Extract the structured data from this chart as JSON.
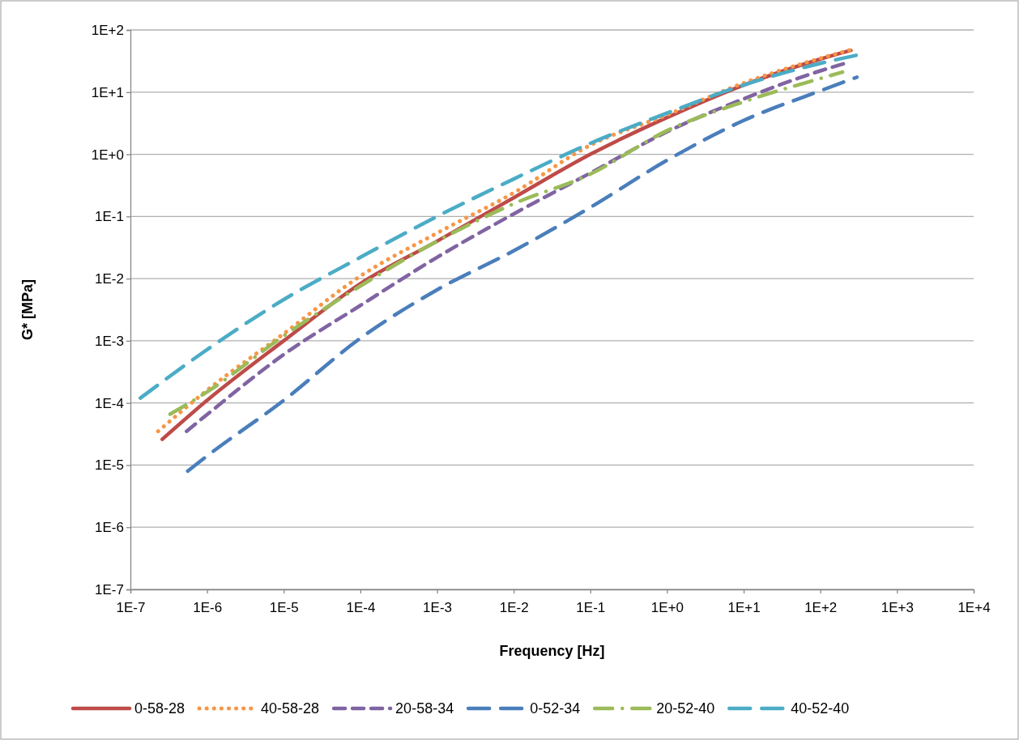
{
  "chart_data": {
    "type": "line",
    "xlabel": "Frequency [Hz]",
    "ylabel": "G* [MPa]",
    "log": "xy",
    "grid": "y",
    "legend": "bottom",
    "xlim": [
      1e-07,
      10000
    ],
    "ylim": [
      1e-07,
      100
    ],
    "xticks": [
      {
        "value": 1e-07,
        "label": "1E-7"
      },
      {
        "value": 1e-06,
        "label": "1E-6"
      },
      {
        "value": 1e-05,
        "label": "1E-5"
      },
      {
        "value": 0.0001,
        "label": "1E-4"
      },
      {
        "value": 0.001,
        "label": "1E-3"
      },
      {
        "value": 0.01,
        "label": "1E-2"
      },
      {
        "value": 0.1,
        "label": "1E-1"
      },
      {
        "value": 1,
        "label": "1E+0"
      },
      {
        "value": 10,
        "label": "1E+1"
      },
      {
        "value": 100,
        "label": "1E+2"
      },
      {
        "value": 1000,
        "label": "1E+3"
      },
      {
        "value": 10000,
        "label": "1E+4"
      }
    ],
    "yticks": [
      {
        "value": 1e-07,
        "label": "1E-7"
      },
      {
        "value": 1e-06,
        "label": "1E-6"
      },
      {
        "value": 1e-05,
        "label": "1E-5"
      },
      {
        "value": 0.0001,
        "label": "1E-4"
      },
      {
        "value": 0.001,
        "label": "1E-3"
      },
      {
        "value": 0.01,
        "label": "1E-2"
      },
      {
        "value": 0.1,
        "label": "1E-1"
      },
      {
        "value": 1,
        "label": "1E+0"
      },
      {
        "value": 10,
        "label": "1E+1"
      },
      {
        "value": 100,
        "label": "1E+2"
      }
    ],
    "series": [
      {
        "name": "0-58-28",
        "color": "#be4b48",
        "line_style": "solid",
        "x": [
          2.6e-07,
          1e-06,
          1e-05,
          0.0001,
          0.001,
          0.01,
          0.1,
          1,
          10,
          100,
          250
        ],
        "values": [
          2.6e-05,
          0.00011,
          0.001,
          0.0083,
          0.04,
          0.2,
          1,
          3.9,
          13,
          34,
          47
        ]
      },
      {
        "name": "40-58-28",
        "color": "#f79646",
        "line_style": "dotted",
        "x": [
          2.3e-07,
          1e-06,
          1e-05,
          0.0001,
          0.001,
          0.01,
          0.1,
          1,
          10,
          100,
          250
        ],
        "values": [
          3.5e-05,
          0.00016,
          0.0013,
          0.011,
          0.054,
          0.24,
          1.4,
          4.3,
          14,
          35,
          48
        ]
      },
      {
        "name": "20-58-34",
        "color": "#8064a2",
        "line_style": "dashed",
        "x": [
          5.4e-07,
          1e-06,
          1e-05,
          0.0001,
          0.001,
          0.01,
          0.1,
          1,
          10,
          100,
          210
        ],
        "values": [
          3.5e-05,
          6.5e-05,
          0.0006,
          0.0037,
          0.022,
          0.11,
          0.5,
          2.3,
          7.8,
          22,
          29
        ]
      },
      {
        "name": "0-52-34",
        "color": "#4a7ebb",
        "line_style": "longdash",
        "x": [
          5.6e-07,
          1e-06,
          1e-05,
          0.0001,
          0.001,
          0.01,
          0.1,
          1,
          10,
          100,
          300
        ],
        "values": [
          8e-06,
          1.4e-05,
          0.00011,
          0.0011,
          0.0066,
          0.028,
          0.14,
          0.8,
          3.5,
          10.5,
          17.4
        ]
      },
      {
        "name": "20-52-40",
        "color": "#9bbb59",
        "line_style": "dashdot",
        "x": [
          3.3e-07,
          1e-06,
          1e-05,
          0.0001,
          0.001,
          0.01,
          0.1,
          1,
          10,
          100,
          195
        ],
        "values": [
          6.6e-05,
          0.00015,
          0.0012,
          0.0076,
          0.04,
          0.16,
          0.48,
          2.4,
          7,
          16.6,
          21
        ]
      },
      {
        "name": "40-52-40",
        "color": "#4bacc6",
        "line_style": "longdash",
        "x": [
          1.35e-07,
          1e-06,
          1e-05,
          0.0001,
          0.001,
          0.01,
          0.1,
          1,
          10,
          100,
          320
        ],
        "values": [
          0.00012,
          0.00072,
          0.0046,
          0.022,
          0.1,
          0.4,
          1.5,
          4.6,
          13,
          29,
          40
        ]
      }
    ]
  }
}
